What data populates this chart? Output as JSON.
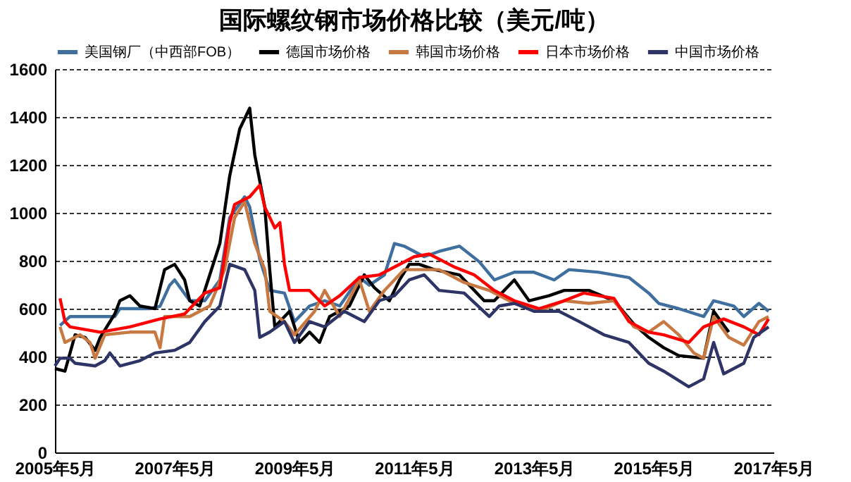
{
  "chart_data": {
    "type": "line",
    "title": "国际螺纹钢市场价格比较（美元/吨）",
    "xlim": [
      "2005-05",
      "2017-05"
    ],
    "xticks": [
      {
        "value": "2005-05",
        "label": "2005年5月"
      },
      {
        "value": "2007-05",
        "label": "2007年5月"
      },
      {
        "value": "2009-05",
        "label": "2009年5月"
      },
      {
        "value": "2011-05",
        "label": "2011年5月"
      },
      {
        "value": "2013-05",
        "label": "2013年5月"
      },
      {
        "value": "2015-05",
        "label": "2015年5月"
      },
      {
        "value": "2017-05",
        "label": "2017年5月"
      }
    ],
    "ylim": [
      0,
      1600
    ],
    "yticks": [
      0,
      200,
      400,
      600,
      800,
      1000,
      1200,
      1400,
      1600
    ],
    "grid": "y",
    "legend": "top",
    "marker": "none",
    "line_style": "solid",
    "series": [
      {
        "name": "美国钢厂（中西部FOB）",
        "color": "#3f6f9f",
        "x": [
          "2005-06",
          "2005-08",
          "2006-05",
          "2006-06",
          "2006-12",
          "2007-02",
          "2007-04",
          "2007-05",
          "2007-08",
          "2007-11",
          "2008-02",
          "2008-04",
          "2008-07",
          "2008-08",
          "2008-10",
          "2008-12",
          "2009-03",
          "2009-05",
          "2009-08",
          "2009-11",
          "2010-02",
          "2010-06",
          "2010-08",
          "2010-11",
          "2011-01",
          "2011-03",
          "2011-07",
          "2011-10",
          "2012-02",
          "2012-06",
          "2012-09",
          "2013-01",
          "2013-05",
          "2013-09",
          "2013-12",
          "2014-06",
          "2014-12",
          "2015-04",
          "2015-06",
          "2015-10",
          "2016-03",
          "2016-05",
          "2016-09",
          "2016-11",
          "2017-02",
          "2017-04"
        ],
        "values": [
          530,
          567,
          567,
          600,
          600,
          610,
          698,
          720,
          633,
          633,
          720,
          980,
          1067,
          1024,
          807,
          676,
          665,
          546,
          611,
          633,
          611,
          730,
          698,
          741,
          872,
          861,
          817,
          839,
          861,
          796,
          720,
          752,
          752,
          720,
          763,
          752,
          730,
          665,
          622,
          600,
          567,
          633,
          611,
          567,
          622,
          589
        ]
      },
      {
        "name": "德国市场价格",
        "color": "#000000",
        "x": [
          "2005-05",
          "2005-07",
          "2005-09",
          "2005-11",
          "2006-01",
          "2006-02",
          "2006-05",
          "2006-06",
          "2006-08",
          "2006-10",
          "2007-01",
          "2007-03",
          "2007-05",
          "2007-07",
          "2007-08",
          "2007-10",
          "2008-02",
          "2008-04",
          "2008-06",
          "2008-08",
          "2008-09",
          "2008-11",
          "2008-12",
          "2009-01",
          "2009-04",
          "2009-06",
          "2009-08",
          "2009-10",
          "2009-12",
          "2010-04",
          "2010-07",
          "2010-09",
          "2010-12",
          "2011-02",
          "2011-04",
          "2011-06",
          "2011-09",
          "2012-02",
          "2012-07",
          "2012-09",
          "2013-01",
          "2013-04",
          "2013-08",
          "2013-11",
          "2014-04",
          "2014-09",
          "2015-01",
          "2015-04",
          "2015-07",
          "2015-10",
          "2016-03",
          "2016-05",
          "2016-08"
        ],
        "values": [
          350,
          339,
          491,
          480,
          426,
          480,
          578,
          633,
          654,
          611,
          600,
          763,
          785,
          720,
          633,
          611,
          872,
          1154,
          1350,
          1437,
          1241,
          1024,
          763,
          524,
          589,
          459,
          502,
          459,
          567,
          611,
          741,
          687,
          633,
          720,
          785,
          785,
          763,
          741,
          633,
          633,
          720,
          633,
          654,
          676,
          676,
          633,
          535,
          480,
          437,
          404,
          393,
          589,
          502
        ]
      },
      {
        "name": "韩国市场价格",
        "color": "#c87941",
        "x": [
          "2005-06",
          "2005-07",
          "2005-10",
          "2005-12",
          "2006-01",
          "2006-03",
          "2006-08",
          "2007-01",
          "2007-02",
          "2007-03",
          "2007-08",
          "2007-12",
          "2008-03",
          "2008-05",
          "2008-07",
          "2008-09",
          "2008-11",
          "2008-12",
          "2009-03",
          "2009-05",
          "2009-09",
          "2009-11",
          "2010-02",
          "2010-06",
          "2010-08",
          "2010-11",
          "2011-03",
          "2011-10",
          "2012-03",
          "2012-08",
          "2012-12",
          "2013-06",
          "2013-11",
          "2014-04",
          "2014-09",
          "2015-01",
          "2015-04",
          "2015-07",
          "2015-10",
          "2016-01",
          "2016-03",
          "2016-05",
          "2016-08",
          "2016-11",
          "2017-02",
          "2017-04"
        ],
        "values": [
          524,
          459,
          491,
          459,
          393,
          491,
          502,
          502,
          437,
          567,
          567,
          611,
          763,
          980,
          1046,
          872,
          763,
          589,
          546,
          491,
          589,
          676,
          567,
          720,
          589,
          676,
          763,
          763,
          709,
          676,
          633,
          589,
          633,
          622,
          633,
          524,
          502,
          546,
          491,
          415,
          393,
          567,
          480,
          448,
          546,
          567
        ]
      },
      {
        "name": "日本市场价格",
        "color": "#ff0000",
        "x": [
          "2005-06",
          "2005-07",
          "2005-08",
          "2006-02",
          "2006-08",
          "2007-02",
          "2007-07",
          "2007-11",
          "2008-02",
          "2008-04",
          "2008-05",
          "2008-08",
          "2008-10",
          "2008-11",
          "2009-01",
          "2009-02",
          "2009-03",
          "2009-04",
          "2009-08",
          "2009-11",
          "2010-02",
          "2010-06",
          "2010-10",
          "2011-03",
          "2011-05",
          "2011-08",
          "2012-01",
          "2012-05",
          "2012-09",
          "2013-01",
          "2013-06",
          "2013-11",
          "2014-03",
          "2014-09",
          "2014-12",
          "2015-04",
          "2015-07",
          "2015-12",
          "2016-03",
          "2016-07",
          "2016-11",
          "2017-02",
          "2017-04"
        ],
        "values": [
          643,
          546,
          524,
          502,
          524,
          557,
          578,
          665,
          687,
          959,
          1035,
          1067,
          1115,
          1024,
          937,
          959,
          785,
          676,
          676,
          611,
          654,
          730,
          741,
          795,
          817,
          828,
          774,
          741,
          676,
          633,
          600,
          633,
          665,
          643,
          546,
          502,
          491,
          459,
          524,
          557,
          524,
          491,
          557
        ]
      },
      {
        "name": "中国市场价格",
        "color": "#2e3466",
        "x": [
          "2005-05",
          "2005-06",
          "2005-08",
          "2005-09",
          "2006-01",
          "2006-03",
          "2006-04",
          "2006-06",
          "2006-10",
          "2007-01",
          "2007-05",
          "2007-08",
          "2007-11",
          "2008-02",
          "2008-04",
          "2008-07",
          "2008-09",
          "2008-10",
          "2008-12",
          "2009-03",
          "2009-05",
          "2009-08",
          "2009-11",
          "2010-03",
          "2010-07",
          "2010-10",
          "2011-01",
          "2011-04",
          "2011-07",
          "2011-10",
          "2012-03",
          "2012-08",
          "2012-10",
          "2013-01",
          "2013-05",
          "2013-10",
          "2014-02",
          "2014-07",
          "2014-12",
          "2015-04",
          "2015-07",
          "2015-12",
          "2016-03",
          "2016-05",
          "2016-07",
          "2016-11",
          "2017-01",
          "2017-04"
        ],
        "values": [
          361,
          393,
          393,
          372,
          361,
          383,
          415,
          361,
          383,
          415,
          426,
          459,
          546,
          611,
          785,
          763,
          676,
          480,
          502,
          546,
          459,
          546,
          524,
          589,
          546,
          633,
          654,
          720,
          741,
          676,
          665,
          567,
          611,
          622,
          589,
          589,
          546,
          491,
          459,
          372,
          339,
          274,
          307,
          459,
          328,
          372,
          480,
          524
        ]
      }
    ]
  }
}
